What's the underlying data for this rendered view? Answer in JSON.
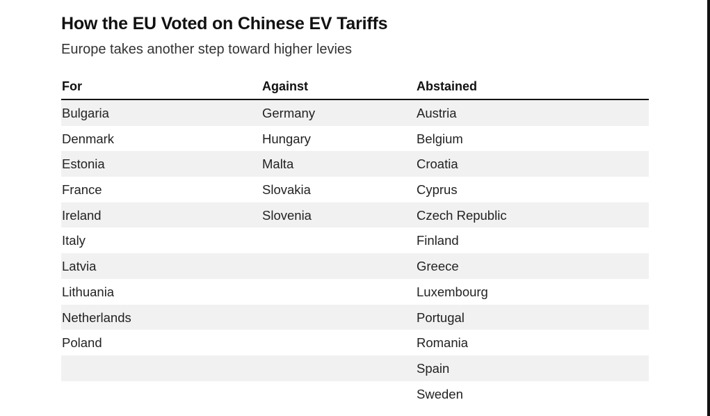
{
  "title": "How the EU Voted on Chinese EV Tariffs",
  "subtitle": "Europe takes another step toward higher levies",
  "chart_data": {
    "type": "table",
    "title": "How the EU Voted on Chinese EV Tariffs",
    "subtitle": "Europe takes another step toward higher levies",
    "columns": [
      "For",
      "Against",
      "Abstained"
    ],
    "rows": [
      [
        "Bulgaria",
        "Germany",
        "Austria"
      ],
      [
        "Denmark",
        "Hungary",
        "Belgium"
      ],
      [
        "Estonia",
        "Malta",
        "Croatia"
      ],
      [
        "France",
        "Slovakia",
        "Cyprus"
      ],
      [
        "Ireland",
        "Slovenia",
        "Czech Republic"
      ],
      [
        "Italy",
        "",
        "Finland"
      ],
      [
        "Latvia",
        "",
        "Greece"
      ],
      [
        "Lithuania",
        "",
        "Luxembourg"
      ],
      [
        "Netherlands",
        "",
        "Portugal"
      ],
      [
        "Poland",
        "",
        "Romania"
      ],
      [
        "",
        "",
        "Spain"
      ],
      [
        "",
        "",
        "Sweden"
      ]
    ],
    "row_shading": "alternating"
  }
}
